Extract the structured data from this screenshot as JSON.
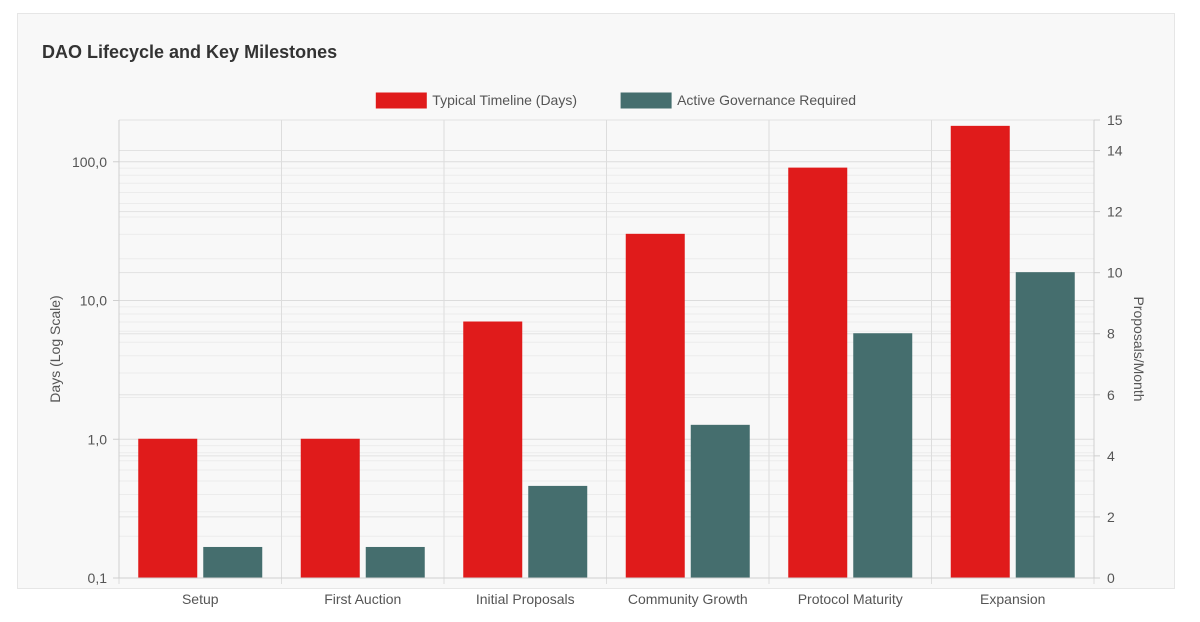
{
  "chart_data": {
    "type": "bar",
    "title": "DAO Lifecycle and Key Milestones",
    "categories": [
      "Setup",
      "First Auction",
      "Initial Proposals",
      "Community Growth",
      "Protocol Maturity",
      "Expansion"
    ],
    "series": [
      {
        "name": "Typical Timeline (Days)",
        "axis": "left",
        "color": "#e01b1b",
        "values": [
          1,
          1,
          7,
          30,
          90,
          180
        ]
      },
      {
        "name": "Active Governance Required",
        "axis": "right",
        "color": "#456e6e",
        "values": [
          1,
          1,
          3,
          5,
          8,
          10
        ]
      }
    ],
    "y_left": {
      "label": "Days (Log Scale)",
      "scale": "log",
      "range": [
        0.1,
        200
      ],
      "major_ticks": [
        0.1,
        1,
        10,
        100
      ],
      "tick_labels": [
        "0,1",
        "1,0",
        "10,0",
        "100,0"
      ]
    },
    "y_right": {
      "label": "Proposals/Month",
      "scale": "linear",
      "range": [
        0,
        15
      ],
      "ticks": [
        0,
        2,
        4,
        6,
        8,
        10,
        12,
        14,
        15
      ]
    },
    "legend_position": "top-center",
    "grid": true
  }
}
